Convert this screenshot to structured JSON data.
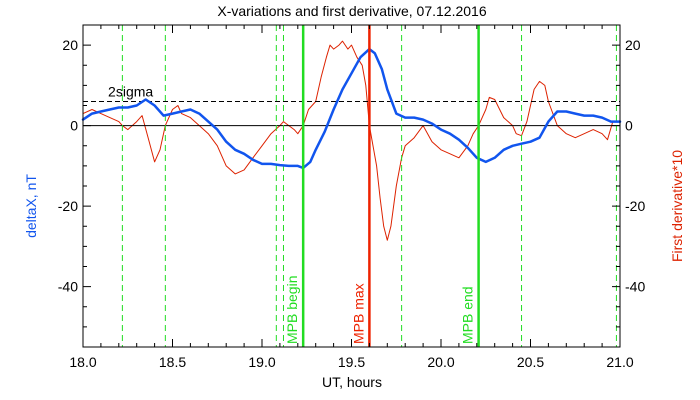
{
  "chart_data": {
    "type": "line",
    "title": "X-variations and first derivative, 07.12.2016",
    "xlabel": "UT, hours",
    "ylabel_left": "deltaX, nT",
    "ylabel_right": "First derivative*10",
    "xlim": [
      18.0,
      21.0
    ],
    "ylim": [
      -55,
      25
    ],
    "x_ticks": [
      "18.0",
      "18.5",
      "19.0",
      "19.5",
      "20.0",
      "20.5",
      "21.0"
    ],
    "x_tick_values": [
      18.0,
      18.5,
      19.0,
      19.5,
      20.0,
      20.5,
      21.0
    ],
    "y_ticks": [
      "20",
      "0",
      "-20",
      "-40"
    ],
    "y_tick_values": [
      20,
      0,
      -20,
      -40
    ],
    "grid": false,
    "threshold": {
      "label": "2sigma",
      "y": 6.0,
      "label_x": 18.14,
      "label_y": 8.5
    },
    "zero_line": 0,
    "dashed_verticals_x": [
      18.22,
      18.46,
      19.08,
      19.12,
      19.78,
      20.45,
      20.98
    ],
    "events": [
      {
        "name": "MPB begin",
        "x": 19.23,
        "color": "#22dd22"
      },
      {
        "name": "MPB max",
        "x": 19.6,
        "color": "#ee2200"
      },
      {
        "name": "MPB end",
        "x": 20.21,
        "color": "#22dd22"
      }
    ],
    "colors": {
      "deltaX": "#1155ee",
      "derivative": "#dd2200",
      "axis": "#000000",
      "dashed": "#22dd22"
    },
    "series": [
      {
        "key": "deltaX",
        "x": [
          18.0,
          18.05,
          18.1,
          18.15,
          18.2,
          18.25,
          18.3,
          18.35,
          18.4,
          18.45,
          18.5,
          18.55,
          18.6,
          18.65,
          18.7,
          18.75,
          18.8,
          18.85,
          18.9,
          18.95,
          19.0,
          19.05,
          19.1,
          19.15,
          19.2,
          19.23,
          19.27,
          19.3,
          19.35,
          19.4,
          19.45,
          19.5,
          19.55,
          19.6,
          19.63,
          19.67,
          19.7,
          19.75,
          19.8,
          19.85,
          19.9,
          19.95,
          20.0,
          20.05,
          20.1,
          20.15,
          20.2,
          20.25,
          20.3,
          20.35,
          20.4,
          20.45,
          20.5,
          20.55,
          20.6,
          20.65,
          20.7,
          20.75,
          20.8,
          20.85,
          20.9,
          20.95,
          21.0
        ],
        "values": [
          1.5,
          3.0,
          3.5,
          4.0,
          4.5,
          4.5,
          5.0,
          6.5,
          5.0,
          2.5,
          3.0,
          3.5,
          4.0,
          3.0,
          1.0,
          -1.0,
          -4.0,
          -6.0,
          -7.0,
          -8.5,
          -9.5,
          -9.5,
          -9.8,
          -10.0,
          -10.0,
          -10.5,
          -9.0,
          -6.0,
          -1.5,
          4.0,
          9.0,
          13.0,
          17.0,
          19.0,
          18.0,
          14.0,
          9.0,
          3.0,
          2.0,
          2.0,
          1.5,
          0.5,
          -1.0,
          -2.0,
          -3.5,
          -5.5,
          -8.0,
          -9.0,
          -8.0,
          -6.0,
          -5.0,
          -4.5,
          -4.0,
          -3.0,
          1.0,
          3.5,
          3.5,
          3.0,
          2.5,
          2.5,
          2.0,
          1.0,
          1.0
        ]
      },
      {
        "key": "derivative",
        "x": [
          18.0,
          18.05,
          18.1,
          18.15,
          18.2,
          18.22,
          18.25,
          18.3,
          18.33,
          18.37,
          18.4,
          18.43,
          18.46,
          18.5,
          18.53,
          18.55,
          18.6,
          18.65,
          18.7,
          18.75,
          18.8,
          18.85,
          18.9,
          18.95,
          19.0,
          19.05,
          19.1,
          19.12,
          19.15,
          19.18,
          19.2,
          19.23,
          19.26,
          19.3,
          19.33,
          19.36,
          19.38,
          19.4,
          19.43,
          19.45,
          19.48,
          19.5,
          19.53,
          19.56,
          19.58,
          19.6,
          19.62,
          19.64,
          19.66,
          19.68,
          19.7,
          19.72,
          19.75,
          19.78,
          19.8,
          19.85,
          19.9,
          19.95,
          20.0,
          20.05,
          20.1,
          20.15,
          20.18,
          20.21,
          20.25,
          20.27,
          20.3,
          20.35,
          20.4,
          20.42,
          20.45,
          20.48,
          20.5,
          20.52,
          20.55,
          20.58,
          20.6,
          20.65,
          20.7,
          20.75,
          20.8,
          20.85,
          20.9,
          20.93,
          20.96,
          21.0
        ],
        "values": [
          3.0,
          4.0,
          3.0,
          2.0,
          1.0,
          0.0,
          -1.0,
          1.0,
          2.5,
          -4.0,
          -9.0,
          -6.0,
          0.0,
          4.0,
          5.0,
          3.0,
          2.0,
          0.0,
          -2.0,
          -5.0,
          -10.0,
          -12.0,
          -11.0,
          -8.0,
          -5.0,
          -2.0,
          0.0,
          1.0,
          0.0,
          -1.0,
          -2.0,
          0.0,
          4.0,
          6.0,
          12.0,
          17.0,
          20.0,
          19.0,
          20.0,
          21.0,
          19.0,
          20.0,
          17.0,
          15.0,
          10.0,
          0.0,
          -5.0,
          -10.0,
          -18.0,
          -25.0,
          -28.5,
          -25.0,
          -15.0,
          -8.0,
          -5.0,
          -3.0,
          0.0,
          -4.0,
          -6.0,
          -7.0,
          -8.0,
          -5.0,
          -2.0,
          0.0,
          4.0,
          7.0,
          6.5,
          2.0,
          0.0,
          -2.0,
          -2.5,
          1.0,
          5.0,
          9.0,
          11.0,
          10.0,
          6.0,
          0.0,
          -2.0,
          -3.0,
          -2.0,
          -1.0,
          -2.0,
          -3.5,
          1.0,
          1.0
        ]
      }
    ]
  }
}
